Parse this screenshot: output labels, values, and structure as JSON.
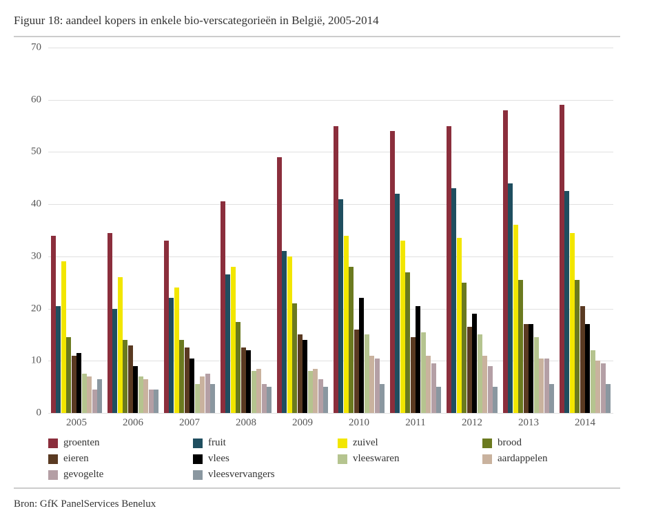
{
  "title": "Figuur 18: aandeel kopers in enkele bio-verscategorieën in België, 2005-2014",
  "source": "Bron: GfK PanelServices Benelux",
  "chart": {
    "type": "bar",
    "ylim": [
      0,
      70
    ],
    "ytick_step": 10,
    "background_color": "#ffffff",
    "grid_color": "#e0e0e0",
    "axis_text_color": "#555555",
    "years": [
      "2005",
      "2006",
      "2007",
      "2008",
      "2009",
      "2010",
      "2011",
      "2012",
      "2013",
      "2014"
    ],
    "series": [
      {
        "key": "groenten",
        "label": "groenten",
        "color": "#8b2e3c",
        "values": [
          34,
          34.5,
          33,
          40.5,
          49,
          55,
          54,
          55,
          58,
          59
        ]
      },
      {
        "key": "fruit",
        "label": "fruit",
        "color": "#1f4e5f",
        "values": [
          20.5,
          20,
          22,
          26.5,
          31,
          41,
          42,
          43,
          44,
          42.5
        ]
      },
      {
        "key": "zuivel",
        "label": "zuivel",
        "color": "#f2e600",
        "values": [
          29,
          26,
          24,
          28,
          30,
          34,
          33,
          33.5,
          36,
          34.5
        ]
      },
      {
        "key": "brood",
        "label": "brood",
        "color": "#6b7a1f",
        "values": [
          14.5,
          14,
          14,
          17.5,
          21,
          28,
          27,
          25,
          25.5,
          25.5
        ]
      },
      {
        "key": "eieren",
        "label": "eieren",
        "color": "#5a3a22",
        "values": [
          11,
          13,
          12.5,
          12.5,
          15,
          16,
          14.5,
          16.5,
          17,
          20.5
        ]
      },
      {
        "key": "vlees",
        "label": "vlees",
        "color": "#000000",
        "values": [
          11.5,
          9,
          10.5,
          12,
          14,
          22,
          20.5,
          19,
          17,
          17
        ]
      },
      {
        "key": "vleeswaren",
        "label": "vleeswaren",
        "color": "#b5c48f",
        "values": [
          7.5,
          7,
          5.5,
          8,
          8,
          15,
          15.5,
          15,
          14.5,
          12
        ]
      },
      {
        "key": "aardappelen",
        "label": "aardappelen",
        "color": "#c9b29e",
        "values": [
          7,
          6.5,
          7,
          8.5,
          8.5,
          11,
          11,
          11,
          10.5,
          10
        ]
      },
      {
        "key": "gevogelte",
        "label": "gevogelte",
        "color": "#b49fa5",
        "values": [
          4.5,
          4.5,
          7.5,
          5.5,
          6.5,
          10.5,
          9.5,
          9,
          10.5,
          9.5
        ]
      },
      {
        "key": "vleesvervangers",
        "label": "vleesvervangers",
        "color": "#8a97a0",
        "values": [
          6.5,
          4.5,
          5.5,
          5,
          5,
          5.5,
          5,
          5,
          5.5,
          5.5
        ]
      }
    ]
  }
}
